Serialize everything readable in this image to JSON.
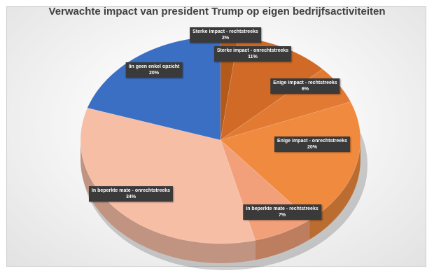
{
  "chart_data": {
    "type": "pie",
    "title": "Verwachte impact van president Trump op eigen bedrijfsactiviteiten",
    "slices": [
      {
        "label": "Sterke impact - rechtstreeks",
        "value": 2,
        "value_label": "2%",
        "color": "#b35a1a"
      },
      {
        "label": "Sterke impact - onrechtstreeks",
        "value": 11,
        "value_label": "11%",
        "color": "#d06a26"
      },
      {
        "label": "Enige impact - rechtstreeks",
        "value": 6,
        "value_label": "6%",
        "color": "#e27a34"
      },
      {
        "label": "Enige impact - onrechtstreeks",
        "value": 20,
        "value_label": "20%",
        "color": "#f08a3e"
      },
      {
        "label": "In beperkte mate - rechtstreeks",
        "value": 7,
        "value_label": "7%",
        "color": "#f2a07a"
      },
      {
        "label": "In beperkte mate - onrechtstreeks",
        "value": 34,
        "value_label": "34%",
        "color": "#f7bea6"
      },
      {
        "label": "Iin geen enkel opzicht",
        "value": 20,
        "value_label": "20%",
        "color": "#3a6fc4"
      }
    ],
    "legend": "none",
    "style": "3d"
  }
}
